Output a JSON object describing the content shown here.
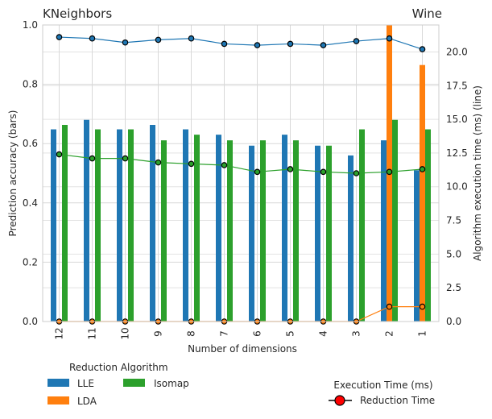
{
  "chart_data": {
    "type": "bar",
    "title_left": "KNeighbors",
    "title_right": "Wine",
    "xlabel": "Number of dimensions",
    "ylabel": "Prediction accuracy (bars)",
    "y2label": "Algorithm execution time (ms) (line)",
    "categories": [
      "12",
      "11",
      "10",
      "9",
      "8",
      "7",
      "6",
      "5",
      "4",
      "3",
      "2",
      "1"
    ],
    "ylim": [
      0,
      1.0
    ],
    "yticks": [
      "0.0",
      "0.2",
      "0.4",
      "0.6",
      "0.8",
      "1.0"
    ],
    "y2lim": [
      0,
      22
    ],
    "y2ticks": [
      "0.0",
      "2.5",
      "5.0",
      "7.5",
      "10.0",
      "12.5",
      "15.0",
      "17.5",
      "20.0"
    ],
    "grid": true,
    "series": [
      {
        "name": "LLE",
        "color": "#1f77b4",
        "values": [
          0.648,
          0.68,
          0.648,
          0.663,
          0.648,
          0.63,
          0.593,
          0.63,
          0.593,
          0.56,
          0.611,
          0.51
        ]
      },
      {
        "name": "LDA",
        "color": "#ff7f0e",
        "values": [
          0,
          0,
          0,
          0,
          0,
          0,
          0,
          0,
          0,
          0,
          1.0,
          0.865
        ]
      },
      {
        "name": "Isomap",
        "color": "#2ca02c",
        "values": [
          0.663,
          0.648,
          0.648,
          0.611,
          0.63,
          0.611,
          0.611,
          0.611,
          0.593,
          0.648,
          0.68,
          0.648
        ]
      }
    ],
    "lines": [
      {
        "series": "LLE",
        "color": "#1f77b4",
        "values": [
          21.1,
          21.0,
          20.7,
          20.9,
          21.0,
          20.6,
          20.5,
          20.6,
          20.5,
          20.8,
          21.0,
          20.2
        ]
      },
      {
        "series": "LDA",
        "color": "#ff7f0e",
        "values": [
          0,
          0,
          0,
          0,
          0,
          0,
          0,
          0,
          0,
          0,
          1.1,
          1.1
        ]
      },
      {
        "series": "Isomap",
        "color": "#2ca02c",
        "values": [
          12.4,
          12.1,
          12.1,
          11.8,
          11.7,
          11.6,
          11.1,
          11.3,
          11.1,
          11.0,
          11.1,
          11.3
        ]
      }
    ],
    "legend_algorithms": {
      "title": "Reduction Algorithm",
      "items": [
        {
          "label": "LLE",
          "color": "#1f77b4"
        },
        {
          "label": "LDA",
          "color": "#ff7f0e"
        },
        {
          "label": "Isomap",
          "color": "#2ca02c"
        }
      ]
    },
    "legend_time": {
      "title": "Execution Time (ms)",
      "label": "Reduction Time",
      "marker_color": "#ff0000"
    }
  }
}
